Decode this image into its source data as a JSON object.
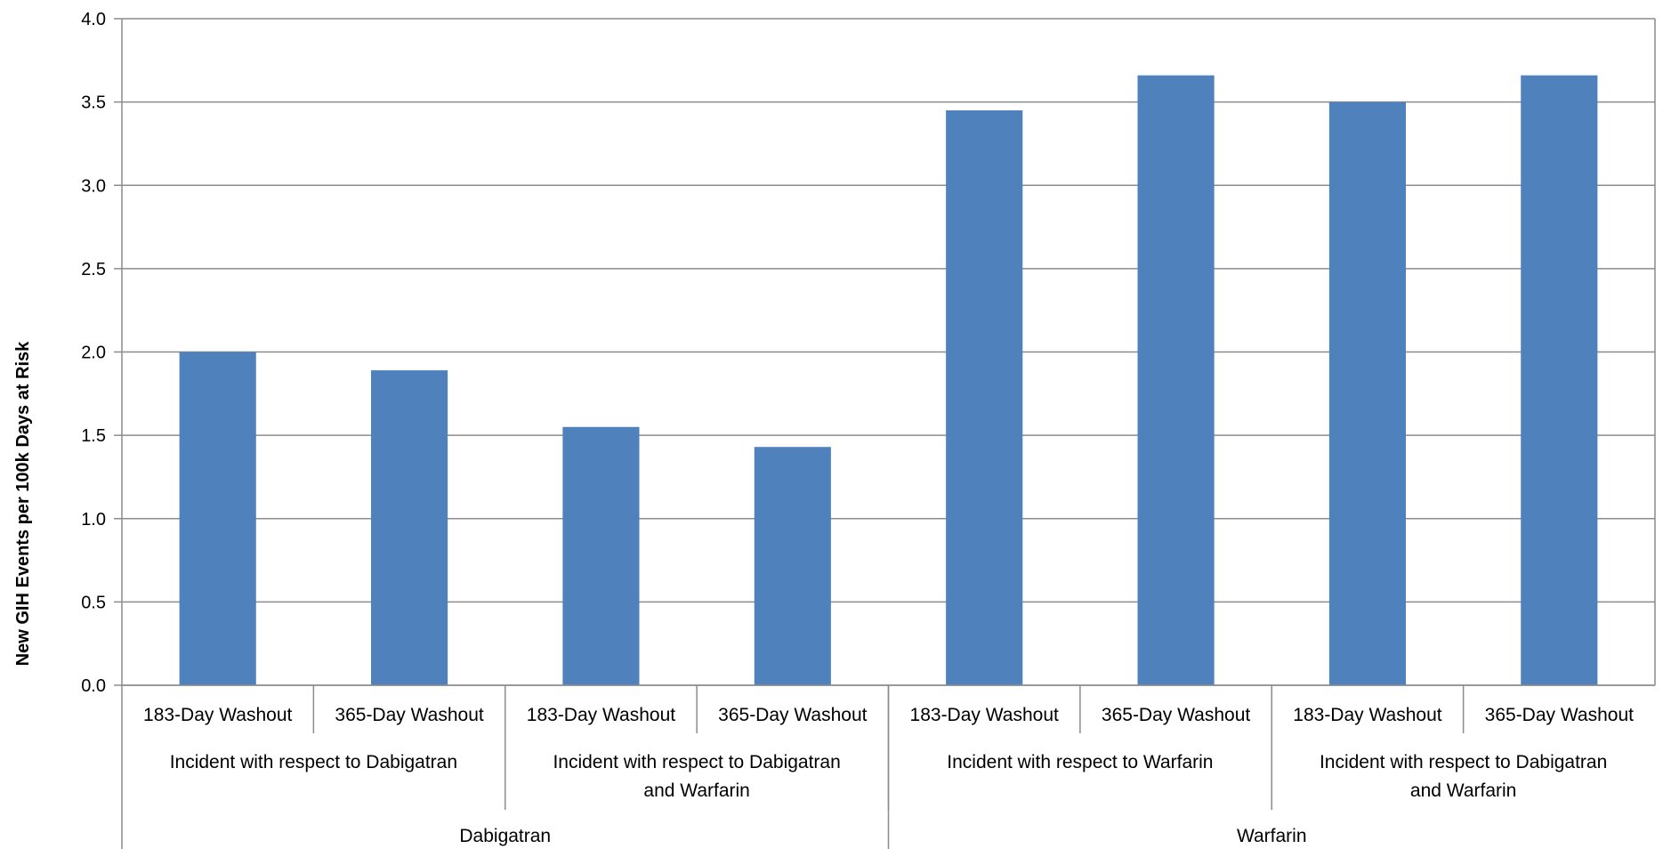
{
  "chart_data": {
    "type": "bar",
    "title": "",
    "ylabel": "New GIH Events per 100k Days at Risk",
    "ylim": [
      0,
      4
    ],
    "yticks": [
      "0.0",
      "0.5",
      "1.0",
      "1.5",
      "2.0",
      "2.5",
      "3.0",
      "3.5",
      "4.0"
    ],
    "grid": true,
    "bar_color": "#4f81bd",
    "categories": [
      "183-Day Washout",
      "365-Day Washout",
      "183-Day Washout",
      "365-Day Washout",
      "183-Day Washout",
      "365-Day Washout",
      "183-Day Washout",
      "365-Day Washout"
    ],
    "values": [
      2.0,
      1.89,
      1.55,
      1.43,
      3.45,
      3.66,
      3.5,
      3.66
    ],
    "groups_level2": [
      {
        "label": [
          "Incident with respect to Dabigatran"
        ],
        "span": 2
      },
      {
        "label": [
          "Incident with respect to Dabigatran",
          "and Warfarin"
        ],
        "span": 2
      },
      {
        "label": [
          "Incident with respect to Warfarin"
        ],
        "span": 2
      },
      {
        "label": [
          "Incident with respect to Dabigatran",
          "and Warfarin"
        ],
        "span": 2
      }
    ],
    "groups_level1": [
      {
        "label": "Dabigatran",
        "span": 4
      },
      {
        "label": "Warfarin",
        "span": 4
      }
    ]
  }
}
